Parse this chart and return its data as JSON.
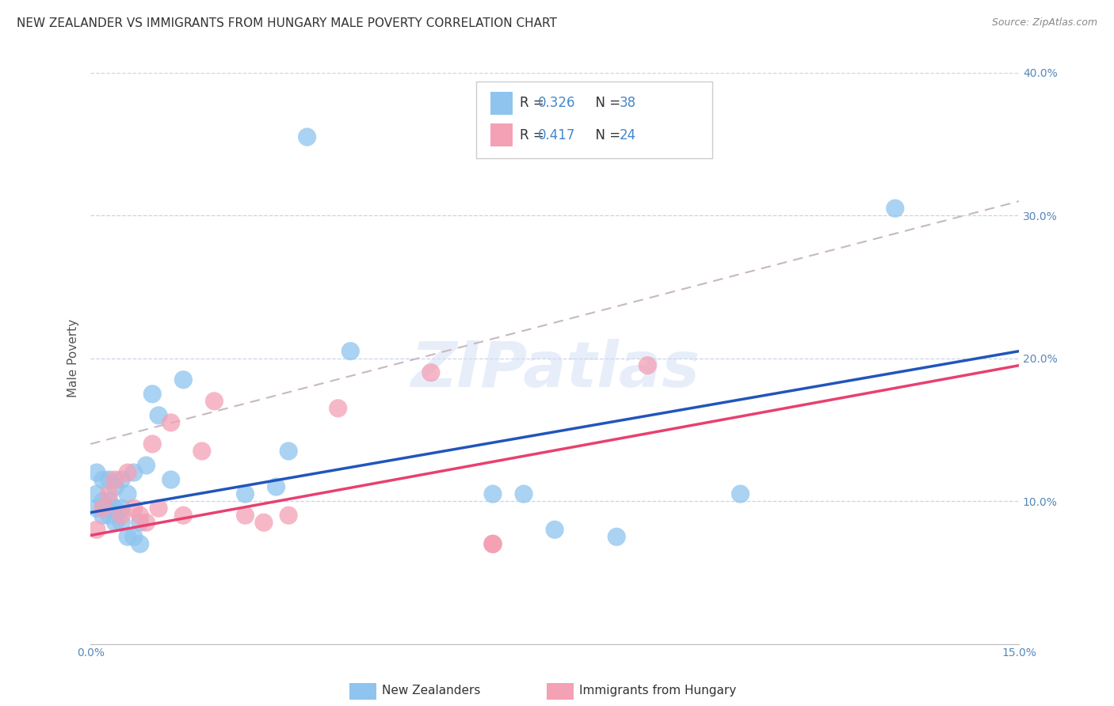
{
  "title": "NEW ZEALANDER VS IMMIGRANTS FROM HUNGARY MALE POVERTY CORRELATION CHART",
  "source": "Source: ZipAtlas.com",
  "ylabel": "Male Poverty",
  "watermark": "ZIPatlas",
  "xlim": [
    0.0,
    0.15
  ],
  "ylim": [
    0.0,
    0.4
  ],
  "color_nz": "#8EC4EE",
  "color_hu": "#F4A0B5",
  "color_nz_line": "#2255BB",
  "color_hu_line": "#E84070",
  "color_dash": "#C8B8C0",
  "nz_x": [
    0.001,
    0.001,
    0.001,
    0.002,
    0.002,
    0.002,
    0.003,
    0.003,
    0.003,
    0.003,
    0.004,
    0.004,
    0.004,
    0.005,
    0.005,
    0.005,
    0.006,
    0.006,
    0.007,
    0.007,
    0.008,
    0.008,
    0.009,
    0.01,
    0.011,
    0.013,
    0.015,
    0.025,
    0.03,
    0.032,
    0.035,
    0.042,
    0.065,
    0.07,
    0.075,
    0.085,
    0.105,
    0.13
  ],
  "nz_y": [
    0.095,
    0.105,
    0.12,
    0.09,
    0.1,
    0.115,
    0.09,
    0.095,
    0.1,
    0.115,
    0.085,
    0.095,
    0.11,
    0.085,
    0.095,
    0.115,
    0.075,
    0.105,
    0.075,
    0.12,
    0.07,
    0.085,
    0.125,
    0.175,
    0.16,
    0.115,
    0.185,
    0.105,
    0.11,
    0.135,
    0.355,
    0.205,
    0.105,
    0.105,
    0.08,
    0.075,
    0.105,
    0.305
  ],
  "hu_x": [
    0.001,
    0.002,
    0.003,
    0.004,
    0.005,
    0.006,
    0.007,
    0.008,
    0.009,
    0.01,
    0.011,
    0.013,
    0.015,
    0.018,
    0.02,
    0.025,
    0.028,
    0.032,
    0.04,
    0.055,
    0.065,
    0.065,
    0.065,
    0.09
  ],
  "hu_y": [
    0.08,
    0.095,
    0.105,
    0.115,
    0.09,
    0.12,
    0.095,
    0.09,
    0.085,
    0.14,
    0.095,
    0.155,
    0.09,
    0.135,
    0.17,
    0.09,
    0.085,
    0.09,
    0.165,
    0.19,
    0.07,
    0.07,
    0.07,
    0.195
  ],
  "nz_line_x": [
    0.0,
    0.15
  ],
  "nz_line_y": [
    0.092,
    0.205
  ],
  "hu_line_x": [
    0.0,
    0.15
  ],
  "hu_line_y": [
    0.076,
    0.195
  ],
  "dash_line_x": [
    0.0,
    0.15
  ],
  "dash_line_y": [
    0.14,
    0.31
  ],
  "background_color": "#FFFFFF",
  "grid_color": "#C8D4E8",
  "title_fontsize": 11,
  "tick_fontsize": 10,
  "legend_R1": "0.326",
  "legend_N1": "38",
  "legend_R2": "0.417",
  "legend_N2": "24"
}
